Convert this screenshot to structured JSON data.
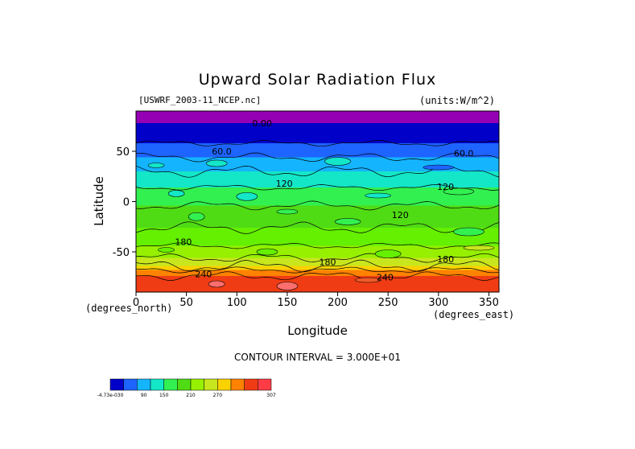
{
  "figure": {
    "title": "Upward Solar Radiation Flux",
    "source": "[USWRF_2003-11_NCEP.nc]",
    "units": "(units:W/m^2)",
    "x_unit_label": "(degrees_east)",
    "y_unit_label": "(degrees_north)",
    "contour_interval": "CONTOUR INTERVAL = 3.000E+01"
  },
  "chart_data": {
    "type": "heatmap",
    "title": "Upward Solar Radiation Flux",
    "xlabel": "Longitude",
    "ylabel": "Latitude",
    "xlim": [
      0,
      360
    ],
    "ylim": [
      -90,
      90
    ],
    "x_ticks": [
      0,
      50,
      100,
      150,
      200,
      250,
      300,
      350
    ],
    "y_ticks": [
      50,
      0,
      -50
    ],
    "contour_interval": 30,
    "colorbar": {
      "labels": [
        "-4.73e-030",
        "90",
        "150",
        "210",
        "270",
        "307"
      ],
      "colors": [
        "#0000c8",
        "#1e64ff",
        "#14b4ff",
        "#14e6c8",
        "#32f050",
        "#50dc14",
        "#96f000",
        "#c8e61e",
        "#fad200",
        "#ff8200",
        "#f03c14",
        "#ff3c46"
      ]
    },
    "contour_labels": [
      {
        "text": "0.00",
        "lon": 125,
        "lat": 78
      },
      {
        "text": "60.0",
        "lon": 85,
        "lat": 50
      },
      {
        "text": "60.0",
        "lon": 325,
        "lat": 48
      },
      {
        "text": "120",
        "lon": 147,
        "lat": 18
      },
      {
        "text": "120",
        "lon": 307,
        "lat": 15
      },
      {
        "text": "120",
        "lon": 262,
        "lat": -13
      },
      {
        "text": "180",
        "lon": 47,
        "lat": -40
      },
      {
        "text": "180",
        "lon": 190,
        "lat": -60
      },
      {
        "text": "180",
        "lon": 307,
        "lat": -57
      },
      {
        "text": "240",
        "lon": 67,
        "lat": -72
      },
      {
        "text": "240",
        "lon": 247,
        "lat": -75
      }
    ],
    "bands": [
      {
        "lat_from": 90,
        "lat_to": 78,
        "color": "#9600b4"
      },
      {
        "lat_from": 78,
        "lat_to": 58,
        "color": "#0000c8"
      },
      {
        "lat_from": 58,
        "lat_to": 44,
        "color": "#1e64ff"
      },
      {
        "lat_from": 44,
        "lat_to": 30,
        "color": "#14b4ff"
      },
      {
        "lat_from": 30,
        "lat_to": 14,
        "color": "#14e6c8"
      },
      {
        "lat_from": 14,
        "lat_to": -4,
        "color": "#32f050"
      },
      {
        "lat_from": -4,
        "lat_to": -26,
        "color": "#50dc14"
      },
      {
        "lat_from": -26,
        "lat_to": -44,
        "color": "#64f000"
      },
      {
        "lat_from": -44,
        "lat_to": -56,
        "color": "#96f000"
      },
      {
        "lat_from": -56,
        "lat_to": -64,
        "color": "#c8e61e"
      },
      {
        "lat_from": -64,
        "lat_to": -68,
        "color": "#fad200"
      },
      {
        "lat_from": -68,
        "lat_to": -74,
        "color": "#ff8200"
      },
      {
        "lat_from": -74,
        "lat_to": -90,
        "color": "#f03c14"
      }
    ]
  }
}
